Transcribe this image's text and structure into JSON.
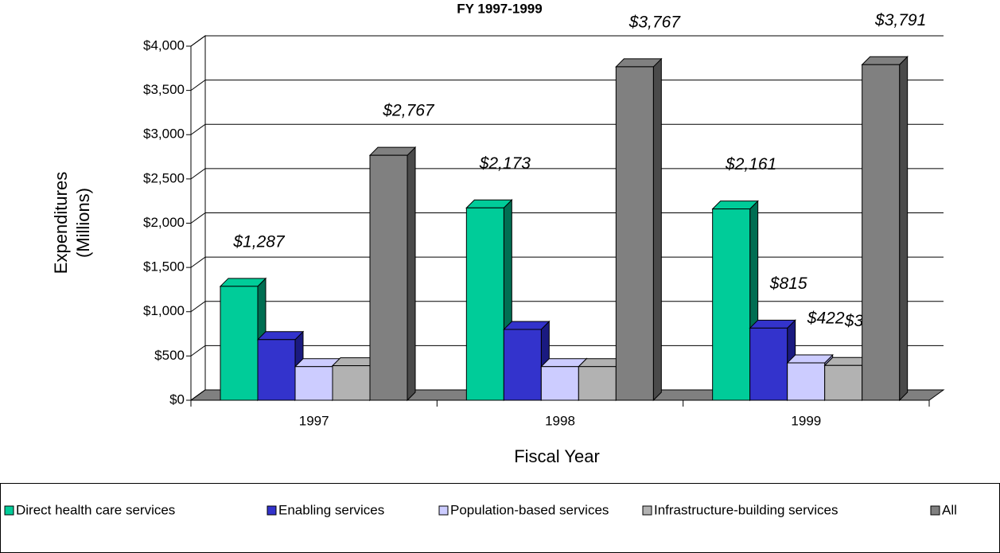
{
  "chart_data": {
    "type": "bar3d",
    "title": "FY 1997-1999",
    "y_label": [
      "Expenditures",
      "(Millions)"
    ],
    "x_label": "Fiscal Year",
    "categories": [
      "1997",
      "1998",
      "1999"
    ],
    "series": [
      {
        "name": "Direct health care services",
        "color": "#00cc99",
        "side": "#006e52",
        "values": [
          1287,
          2173,
          2161
        ],
        "value_labels": [
          "$1,287",
          "$2,173",
          "$2,161"
        ]
      },
      {
        "name": "Enabling services",
        "color": "#3333cc",
        "side": "#1a1a80",
        "values": [
          685,
          800,
          815
        ],
        "value_labels": [
          null,
          null,
          "$815"
        ]
      },
      {
        "name": "Population-based services",
        "color": "#ccccff",
        "side": "#8080b3",
        "values": [
          380,
          380,
          422
        ],
        "value_labels": [
          null,
          null,
          "$422"
        ]
      },
      {
        "name": "Infrastructure-building services",
        "color": "#b2b2b2",
        "side": "#6e6e6e",
        "values": [
          390,
          380,
          393
        ],
        "value_labels": [
          null,
          null,
          "$393"
        ]
      },
      {
        "name": "All",
        "color": "#808080",
        "side": "#4a4a4a",
        "values": [
          2767,
          3767,
          3791
        ],
        "value_labels": [
          "$2,767",
          "$3,767",
          "$3,791"
        ]
      }
    ],
    "ylim": [
      0,
      4000
    ],
    "yticks": [
      {
        "value": 0,
        "label": "$0"
      },
      {
        "value": 500,
        "label": "$500"
      },
      {
        "value": 1000,
        "label": "$1,000"
      },
      {
        "value": 1500,
        "label": "$1,500"
      },
      {
        "value": 2000,
        "label": "$2,000"
      },
      {
        "value": 2500,
        "label": "$2,500"
      },
      {
        "value": 3000,
        "label": "$3,000"
      },
      {
        "value": 3500,
        "label": "$3,500"
      },
      {
        "value": 4000,
        "label": "$4,000"
      }
    ],
    "grid": true
  }
}
